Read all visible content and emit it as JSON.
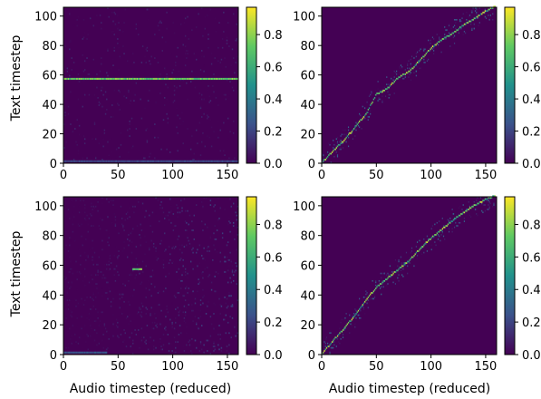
{
  "chart_data": [
    {
      "type": "heatmap",
      "panel": "top-left",
      "ylabel": "Text timestep",
      "xlabel": "",
      "xlim": [
        0,
        160
      ],
      "ylim": [
        0,
        106
      ],
      "xticks": [
        0,
        50,
        100,
        150
      ],
      "yticks": [
        0,
        20,
        40,
        60,
        80,
        100
      ],
      "colorbar_ticks": [
        0.0,
        0.2,
        0.4,
        0.6,
        0.8
      ],
      "colorbar_range": [
        0,
        0.97
      ],
      "pattern": "noise",
      "features": [
        {
          "kind": "hline",
          "y": 57,
          "x0": 0,
          "x1": 160,
          "value": 0.85
        },
        {
          "kind": "hline",
          "y": 1,
          "x0": 0,
          "x1": 160,
          "value": 0.25
        }
      ]
    },
    {
      "type": "heatmap",
      "panel": "top-right",
      "ylabel": "",
      "xlabel": "",
      "xlim": [
        0,
        160
      ],
      "ylim": [
        0,
        106
      ],
      "xticks": [
        0,
        50,
        100,
        150
      ],
      "yticks": [
        0,
        20,
        40,
        60,
        80,
        100
      ],
      "colorbar_ticks": [
        0.0,
        0.2,
        0.4,
        0.6,
        0.8
      ],
      "colorbar_range": [
        0,
        0.97
      ],
      "pattern": "diagonal",
      "alignment_path": [
        [
          0,
          0
        ],
        [
          10,
          8
        ],
        [
          20,
          15
        ],
        [
          30,
          24
        ],
        [
          40,
          33
        ],
        [
          45,
          40
        ],
        [
          50,
          47
        ],
        [
          55,
          48
        ],
        [
          62,
          52
        ],
        [
          70,
          58
        ],
        [
          80,
          62
        ],
        [
          90,
          70
        ],
        [
          100,
          78
        ],
        [
          110,
          84
        ],
        [
          120,
          88
        ],
        [
          130,
          94
        ],
        [
          140,
          98
        ],
        [
          150,
          103
        ],
        [
          158,
          106
        ]
      ]
    },
    {
      "type": "heatmap",
      "panel": "bottom-left",
      "ylabel": "Text timestep",
      "xlabel": "Audio timestep (reduced)",
      "xlim": [
        0,
        160
      ],
      "ylim": [
        0,
        106
      ],
      "xticks": [
        0,
        50,
        100,
        150
      ],
      "yticks": [
        0,
        20,
        40,
        60,
        80,
        100
      ],
      "colorbar_ticks": [
        0.0,
        0.2,
        0.4,
        0.6,
        0.8
      ],
      "colorbar_range": [
        0,
        0.97
      ],
      "pattern": "noise_gradient",
      "features": [
        {
          "kind": "hline",
          "y": 57,
          "x0": 63,
          "x1": 72,
          "value": 0.85
        },
        {
          "kind": "hline",
          "y": 1,
          "x0": 0,
          "x1": 40,
          "value": 0.3
        }
      ]
    },
    {
      "type": "heatmap",
      "panel": "bottom-right",
      "ylabel": "",
      "xlabel": "Audio timestep (reduced)",
      "xlim": [
        0,
        160
      ],
      "ylim": [
        0,
        106
      ],
      "xticks": [
        0,
        50,
        100,
        150
      ],
      "yticks": [
        0,
        20,
        40,
        60,
        80,
        100
      ],
      "colorbar_ticks": [
        0.0,
        0.2,
        0.4,
        0.6,
        0.8
      ],
      "colorbar_range": [
        0,
        0.97
      ],
      "pattern": "diagonal",
      "alignment_path": [
        [
          0,
          0
        ],
        [
          10,
          9
        ],
        [
          20,
          17
        ],
        [
          30,
          26
        ],
        [
          40,
          36
        ],
        [
          50,
          45
        ],
        [
          60,
          51
        ],
        [
          70,
          57
        ],
        [
          80,
          63
        ],
        [
          90,
          71
        ],
        [
          100,
          78
        ],
        [
          110,
          84
        ],
        [
          120,
          90
        ],
        [
          130,
          95
        ],
        [
          140,
          100
        ],
        [
          150,
          104
        ],
        [
          158,
          106
        ]
      ]
    }
  ],
  "colors": {
    "viridis": [
      "#440154",
      "#3b528b",
      "#21918c",
      "#5ec962",
      "#fde725"
    ],
    "background": "#ffffff"
  }
}
